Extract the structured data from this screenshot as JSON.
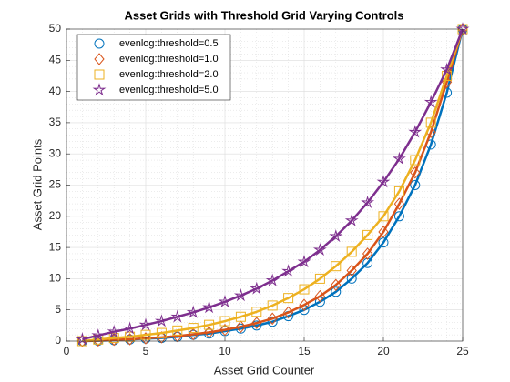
{
  "chart_data": {
    "type": "line",
    "title": "Asset Grids with Threshold Grid Varying Controls",
    "x_label": "Asset Grid Counter",
    "y_label": "Asset Grid Points",
    "x": [
      1,
      2,
      3,
      4,
      5,
      6,
      7,
      8,
      9,
      10,
      11,
      12,
      13,
      14,
      15,
      16,
      17,
      18,
      19,
      20,
      21,
      22,
      23,
      24,
      25
    ],
    "series": [
      {
        "name": "evenlog:threshold=0.5",
        "color": "#0072BD",
        "marker": "circle",
        "values": [
          0,
          0.05,
          0.15,
          0.25,
          0.4,
          0.5,
          0.7,
          1,
          1.2,
          1.6,
          2,
          2.5,
          3.1,
          4,
          5,
          6.3,
          7.9,
          10,
          12.5,
          15.8,
          20,
          25,
          31.5,
          39.8,
          50
        ]
      },
      {
        "name": "evenlog:threshold=1.0",
        "color": "#D95319",
        "marker": "diamond",
        "values": [
          0,
          0.1,
          0.2,
          0.3,
          0.45,
          0.6,
          0.8,
          1.1,
          1.4,
          1.8,
          2.3,
          2.9,
          3.6,
          4.6,
          5.8,
          7.2,
          9,
          11.3,
          14,
          17.5,
          22,
          27,
          33.5,
          41.5,
          50
        ]
      },
      {
        "name": "evenlog:threshold=2.0",
        "color": "#EDB120",
        "marker": "square",
        "values": [
          0,
          0.25,
          0.5,
          0.7,
          1,
          1.3,
          1.7,
          2.1,
          2.6,
          3.2,
          3.9,
          4.7,
          5.7,
          6.9,
          8.3,
          10,
          12,
          14.3,
          17,
          20,
          24,
          29,
          35,
          42.5,
          50
        ]
      },
      {
        "name": "evenlog:threshold=5.0",
        "color": "#7E2F8E",
        "marker": "pentagram",
        "values": [
          0.3,
          0.9,
          1.5,
          2,
          2.6,
          3.2,
          3.9,
          4.6,
          5.4,
          6.3,
          7.3,
          8.4,
          9.7,
          11.2,
          12.7,
          14.6,
          16.8,
          19.3,
          22.2,
          25.5,
          29.2,
          33.5,
          38.3,
          43.5,
          50
        ]
      }
    ],
    "xlim": [
      0,
      25
    ],
    "xticks": [
      0,
      5,
      10,
      15,
      20,
      25
    ],
    "ylim": [
      0,
      50
    ],
    "yticks": [
      0,
      5,
      10,
      15,
      20,
      25,
      30,
      35,
      40,
      45,
      50
    ],
    "grid": true,
    "minor_grid": true,
    "legend": "upper left"
  }
}
